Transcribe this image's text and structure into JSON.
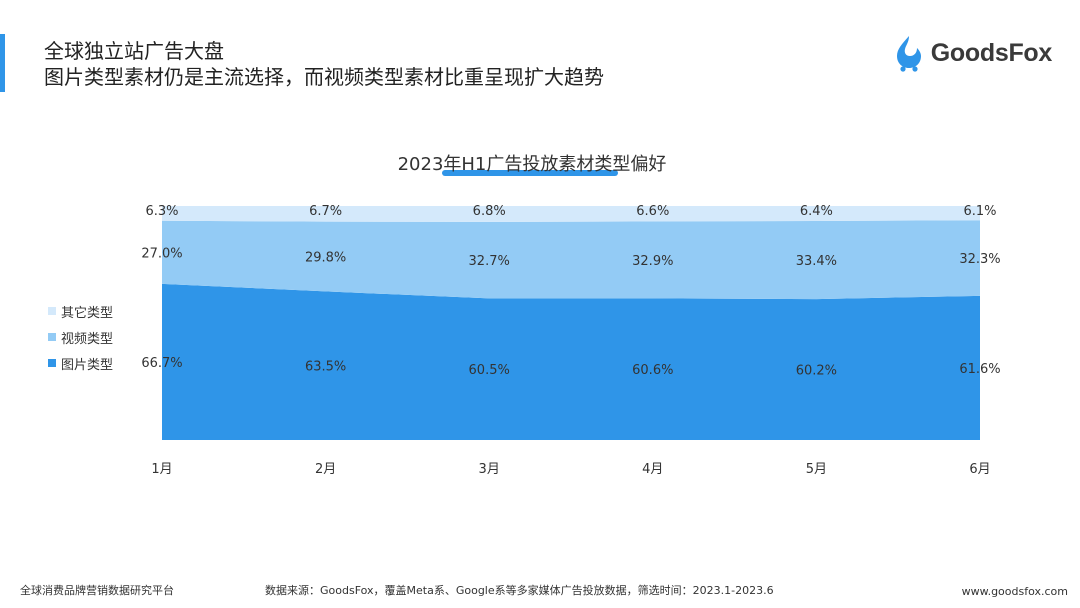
{
  "header": {
    "title_line1": "全球独立站广告大盘",
    "title_line2": "图片类型素材仍是主流选择，而视频类型素材比重呈现扩大趋势"
  },
  "logo": {
    "text": "GoodsFox",
    "icon": "goodsfox-logo-icon",
    "color": "#2f95e8"
  },
  "chart_data": {
    "type": "area",
    "stacked": true,
    "normalized": true,
    "title": "2023年H1广告投放素材类型偏好",
    "categories": [
      "1月",
      "2月",
      "3月",
      "4月",
      "5月",
      "6月"
    ],
    "series": [
      {
        "name": "图片类型",
        "color": "#2f95e8",
        "values": [
          66.7,
          63.5,
          60.5,
          60.6,
          60.2,
          61.6
        ],
        "labels": [
          "66.7%",
          "63.5%",
          "60.5%",
          "60.6%",
          "60.2%",
          "61.6%"
        ]
      },
      {
        "name": "视频类型",
        "color": "#93cbf5",
        "values": [
          27.0,
          29.8,
          32.7,
          32.9,
          33.4,
          32.3
        ],
        "labels": [
          "27.0%",
          "29.8%",
          "32.7%",
          "32.9%",
          "33.4%",
          "32.3%"
        ]
      },
      {
        "name": "其它类型",
        "color": "#d4e9fb",
        "values": [
          6.3,
          6.7,
          6.8,
          6.6,
          6.4,
          6.1
        ],
        "labels": [
          "6.3%",
          "6.7%",
          "6.8%",
          "6.6%",
          "6.4%",
          "6.1%"
        ]
      }
    ],
    "legend_labels": [
      "其它类型",
      "视频类型",
      "图片类型"
    ],
    "legend_colors": [
      "#d4e9fb",
      "#93cbf5",
      "#2f95e8"
    ],
    "legend_position": "left",
    "ylim": [
      0,
      100
    ],
    "grid": false
  },
  "footer": {
    "left": "全球消费品牌营销数据研究平台",
    "source": "数据来源：GoodsFox，覆盖Meta系、Google系等多家媒体广告投放数据，筛选时间：2023.1-2023.6",
    "url": "www.goodsfox.com"
  }
}
